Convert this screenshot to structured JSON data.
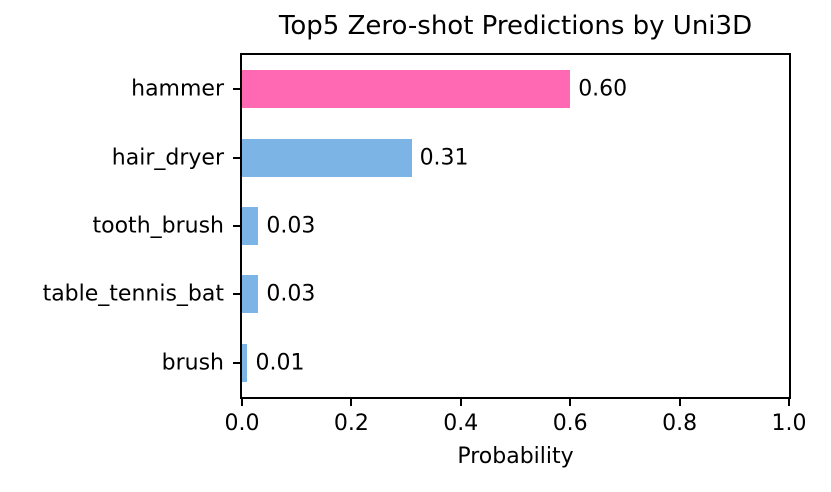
{
  "chart_data": {
    "type": "bar",
    "orientation": "horizontal",
    "title": "Top5 Zero-shot Predictions by Uni3D",
    "xlabel": "Probability",
    "ylabel": "",
    "categories": [
      "hammer",
      "hair_dryer",
      "tooth_brush",
      "table_tennis_bat",
      "brush"
    ],
    "values": [
      0.6,
      0.31,
      0.03,
      0.03,
      0.01
    ],
    "value_labels": [
      "0.60",
      "0.31",
      "0.03",
      "0.03",
      "0.01"
    ],
    "bar_colors": [
      "#ff69b4",
      "#7cb5e5",
      "#7cb5e5",
      "#7cb5e5",
      "#7cb5e5"
    ],
    "highlight_color": "#ff69b4",
    "default_color": "#7cb5e5",
    "xlim": [
      0.0,
      1.0
    ],
    "x_tick_values": [
      0.0,
      0.2,
      0.4,
      0.6,
      0.8,
      1.0
    ],
    "x_tick_labels": [
      "0.0",
      "0.2",
      "0.4",
      "0.6",
      "0.8",
      "1.0"
    ],
    "grid": false,
    "legend": "none",
    "frame": "full-box",
    "text_color": "#000000",
    "background_color": "#ffffff"
  }
}
